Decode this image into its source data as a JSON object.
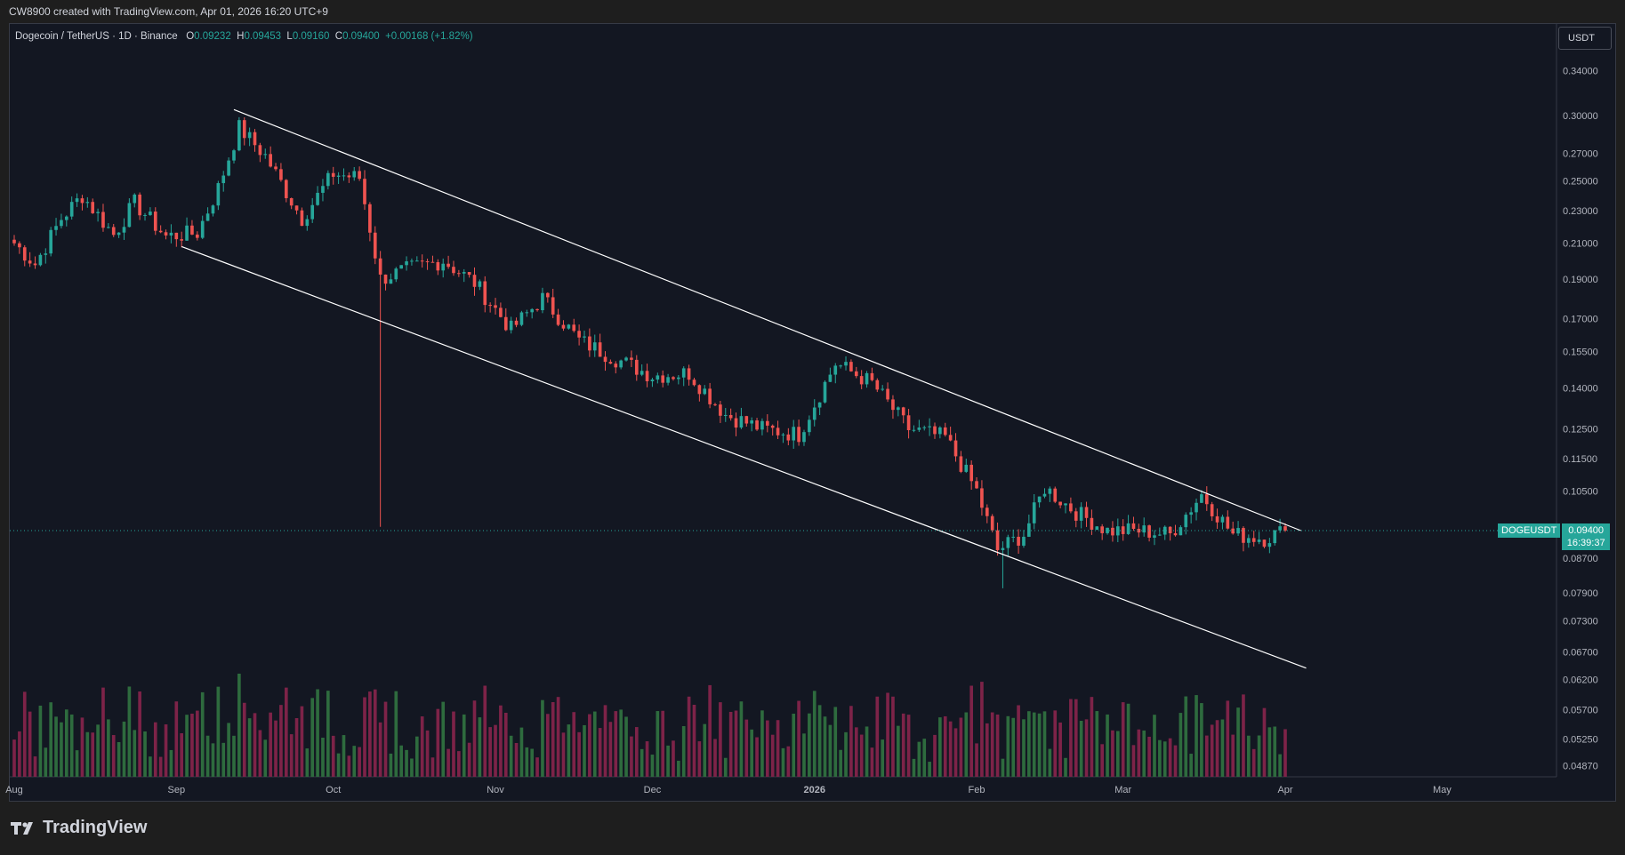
{
  "caption": "CW8900 created with TradingView.com, Apr 01, 2026 16:20 UTC+9",
  "legend": {
    "title": "Dogecoin / TetherUS · 1D · Binance",
    "o_label": "O",
    "o_value": "0.09232",
    "h_label": "H",
    "h_value": "0.09453",
    "l_label": "L",
    "l_value": "0.09160",
    "c_label": "C",
    "c_value": "0.09400",
    "change": "+0.00168 (+1.82%)"
  },
  "currency": "USDT",
  "price_tag": {
    "symbol": "DOGEUSDT",
    "price": "0.09400",
    "countdown": "16:39:37"
  },
  "brand": {
    "name": "TradingView",
    "icon": "tradingview-logo-icon"
  },
  "colors": {
    "up": "#26a69a",
    "down": "#ef5350",
    "vol_up": "#2e6b3e",
    "vol_down": "#7d2348",
    "background": "#131722",
    "channel": "#ffffff"
  },
  "chart_data": {
    "type": "candlestick",
    "symbol": "DOGEUSDT",
    "interval": "1D",
    "scale": "log",
    "y_axis_ticks": [
      "0.34000",
      "0.30000",
      "0.27000",
      "0.25000",
      "0.23000",
      "0.21000",
      "0.19000",
      "0.17000",
      "0.15500",
      "0.14000",
      "0.12500",
      "0.11500",
      "0.10500",
      "0.09400",
      "0.08700",
      "0.07900",
      "0.07300",
      "0.06700",
      "0.06200",
      "0.05700",
      "0.05250",
      "0.04870"
    ],
    "x_axis_labels": [
      "Aug",
      "Sep",
      "Oct",
      "Nov",
      "Dec",
      "2026",
      "Feb",
      "Mar",
      "Apr",
      "May"
    ],
    "last_price": 0.094,
    "approx_close_path": [
      {
        "date": "2025-08-01",
        "close": 0.21
      },
      {
        "date": "2025-08-05",
        "close": 0.198
      },
      {
        "date": "2025-08-10",
        "close": 0.225
      },
      {
        "date": "2025-08-14",
        "close": 0.24
      },
      {
        "date": "2025-08-20",
        "close": 0.215
      },
      {
        "date": "2025-08-24",
        "close": 0.235
      },
      {
        "date": "2025-08-30",
        "close": 0.214
      },
      {
        "date": "2025-09-05",
        "close": 0.216
      },
      {
        "date": "2025-09-09",
        "close": 0.245
      },
      {
        "date": "2025-09-13",
        "close": 0.29
      },
      {
        "date": "2025-09-18",
        "close": 0.268
      },
      {
        "date": "2025-09-25",
        "close": 0.225
      },
      {
        "date": "2025-10-01",
        "close": 0.255
      },
      {
        "date": "2025-10-06",
        "close": 0.252
      },
      {
        "date": "2025-10-10",
        "close": 0.19
      },
      {
        "date": "2025-10-15",
        "close": 0.195
      },
      {
        "date": "2025-10-22",
        "close": 0.2
      },
      {
        "date": "2025-10-28",
        "close": 0.188
      },
      {
        "date": "2025-11-04",
        "close": 0.165
      },
      {
        "date": "2025-11-10",
        "close": 0.18
      },
      {
        "date": "2025-11-17",
        "close": 0.16
      },
      {
        "date": "2025-11-24",
        "close": 0.152
      },
      {
        "date": "2025-12-01",
        "close": 0.145
      },
      {
        "date": "2025-12-08",
        "close": 0.146
      },
      {
        "date": "2025-12-15",
        "close": 0.13
      },
      {
        "date": "2025-12-22",
        "close": 0.125
      },
      {
        "date": "2025-12-29",
        "close": 0.123
      },
      {
        "date": "2026-01-05",
        "close": 0.15
      },
      {
        "date": "2026-01-12",
        "close": 0.142
      },
      {
        "date": "2026-01-19",
        "close": 0.125
      },
      {
        "date": "2026-01-26",
        "close": 0.122
      },
      {
        "date": "2026-02-01",
        "close": 0.105
      },
      {
        "date": "2026-02-05",
        "close": 0.089
      },
      {
        "date": "2026-02-10",
        "close": 0.093
      },
      {
        "date": "2026-02-14",
        "close": 0.106
      },
      {
        "date": "2026-02-20",
        "close": 0.099
      },
      {
        "date": "2026-02-26",
        "close": 0.094
      },
      {
        "date": "2026-03-04",
        "close": 0.094
      },
      {
        "date": "2026-03-10",
        "close": 0.093
      },
      {
        "date": "2026-03-16",
        "close": 0.104
      },
      {
        "date": "2026-03-22",
        "close": 0.093
      },
      {
        "date": "2026-03-28",
        "close": 0.092
      },
      {
        "date": "2026-04-01",
        "close": 0.094
      }
    ],
    "channel_upper": [
      {
        "date": "2025-09-12",
        "price": 0.305
      },
      {
        "date": "2026-04-04",
        "price": 0.094
      }
    ],
    "channel_lower": [
      {
        "date": "2025-09-02",
        "price": 0.208
      },
      {
        "date": "2026-04-05",
        "price": 0.064
      }
    ],
    "volume_note": "volume histogram along bottom, green up / maroon down"
  }
}
